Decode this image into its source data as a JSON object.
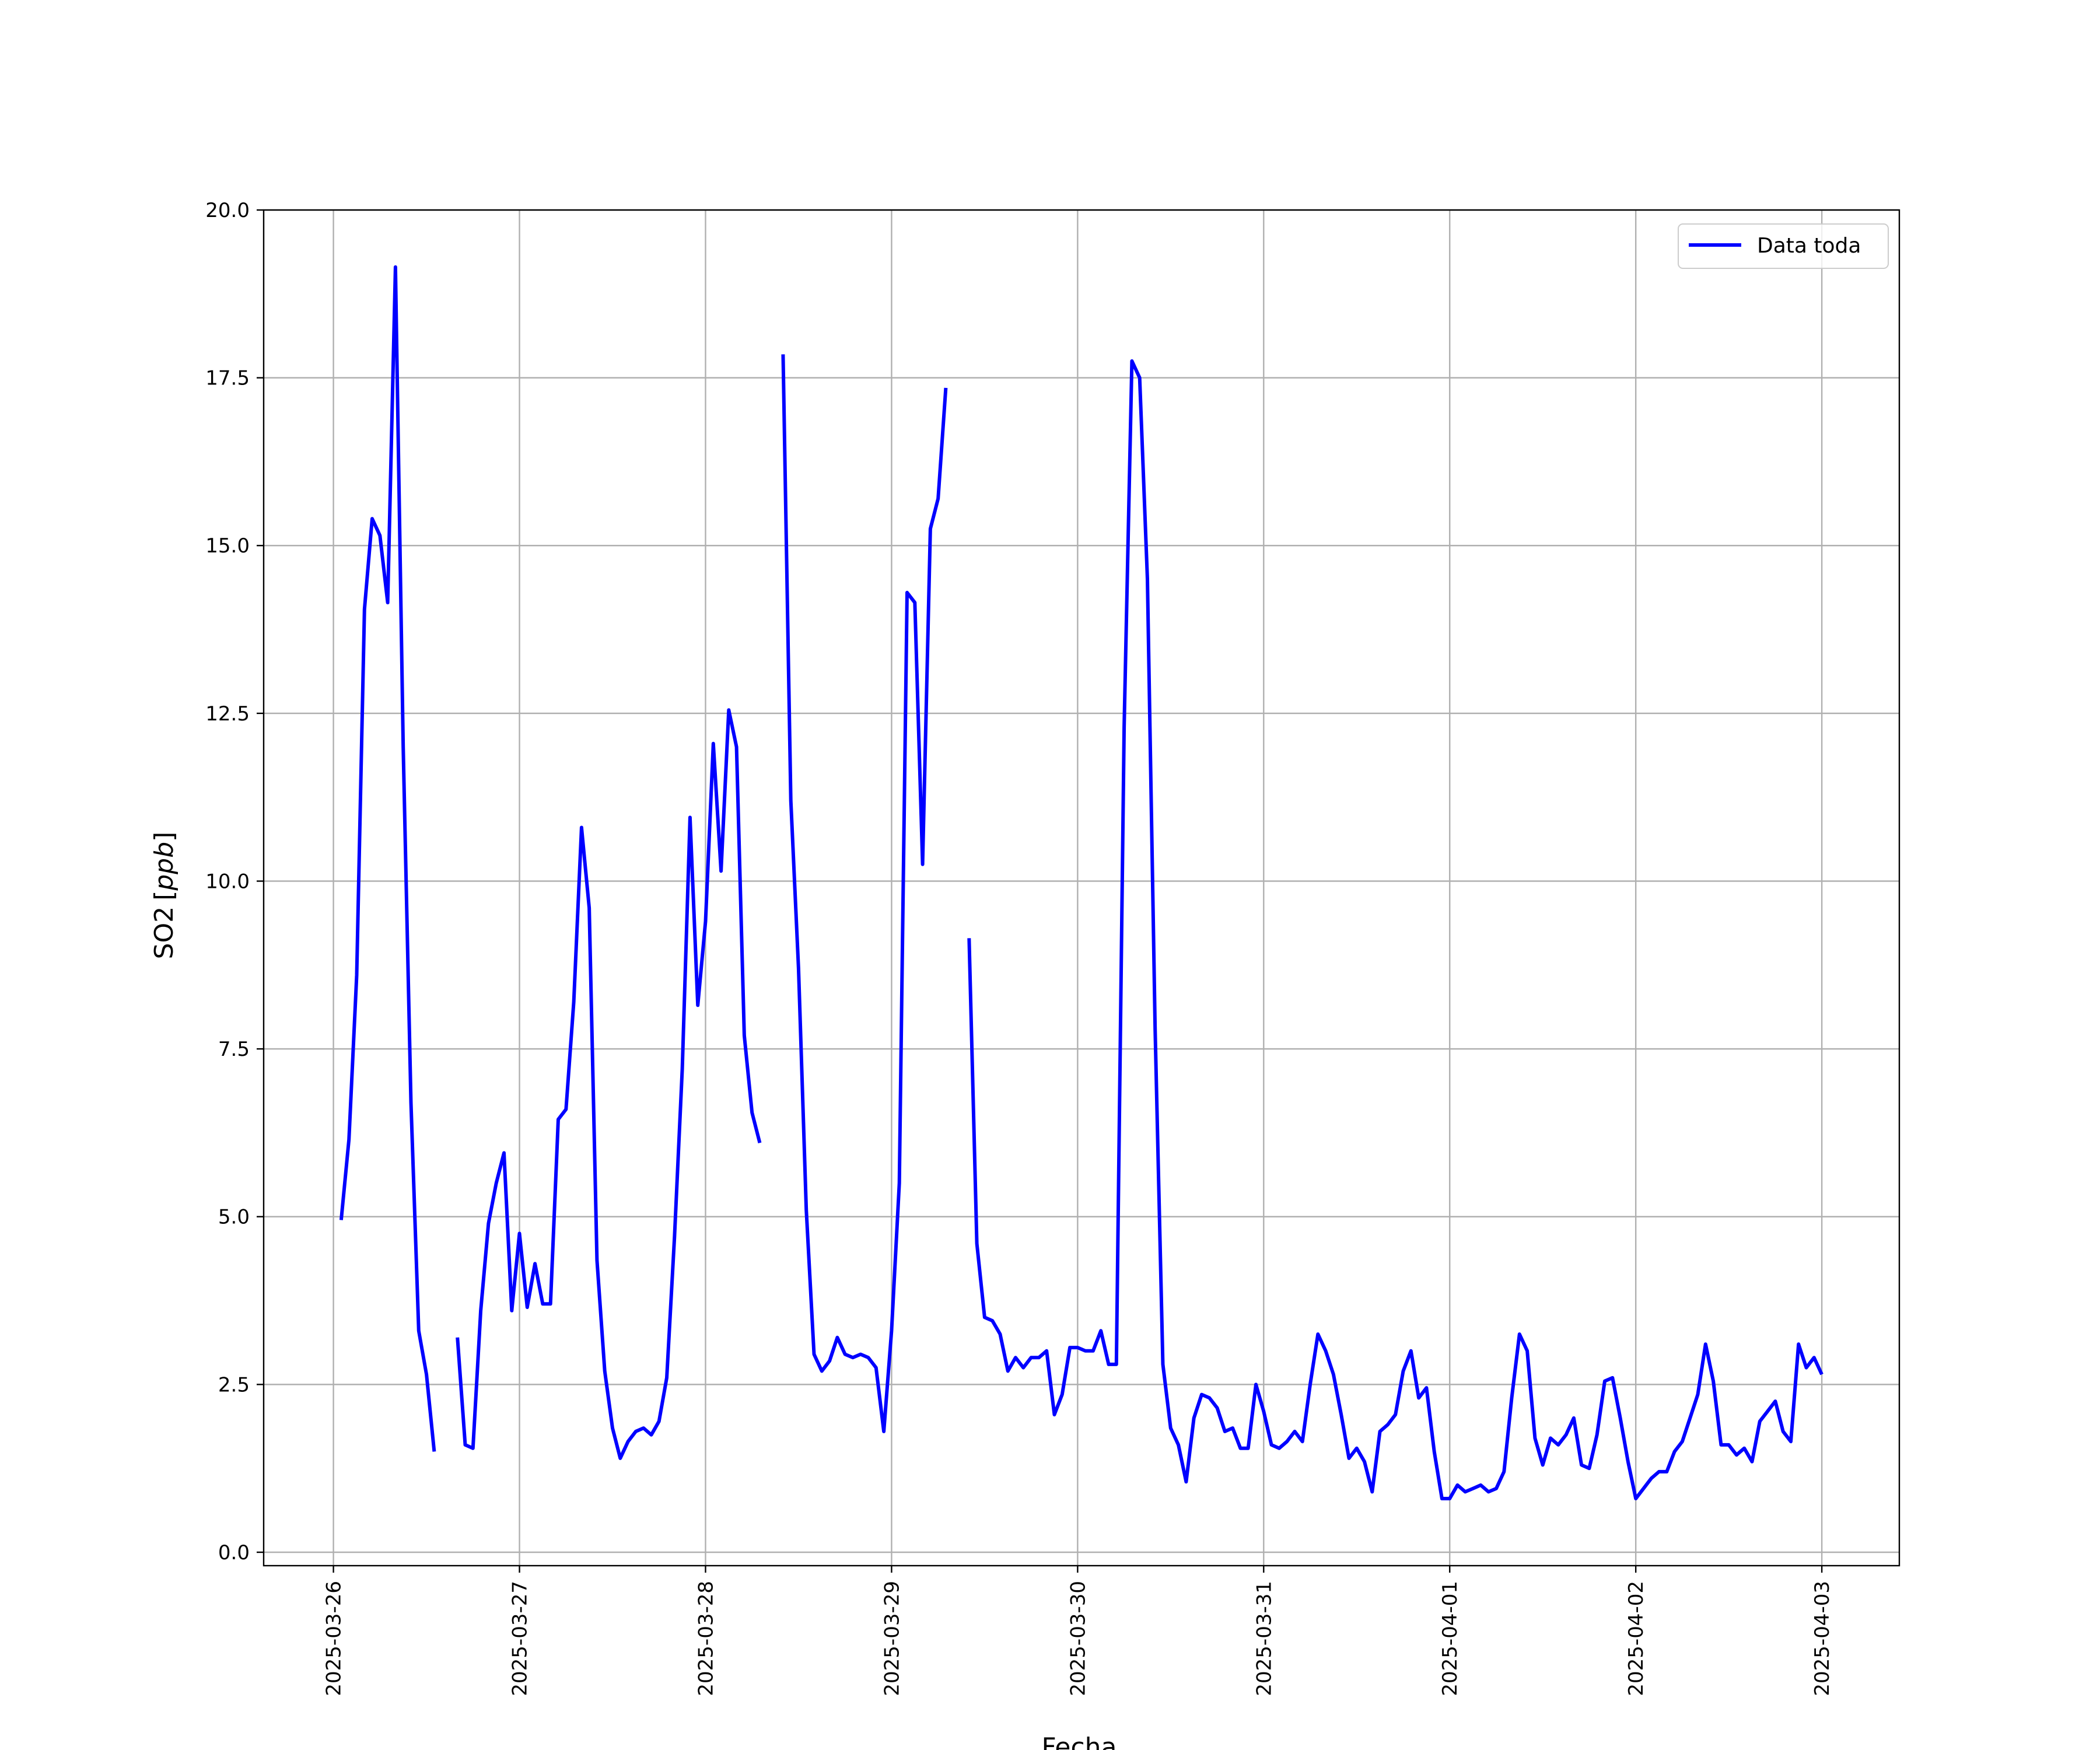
{
  "chart_data": {
    "type": "line",
    "title": "",
    "xlabel": "Fecha",
    "ylabel": "SO2",
    "ylabel_unit": "ppb",
    "xlim": [
      "2025-03-25T15:00",
      "2025-04-03T10:00"
    ],
    "ylim": [
      -0.2,
      20.0
    ],
    "x_ticks": [
      "2025-03-26",
      "2025-03-27",
      "2025-03-28",
      "2025-03-29",
      "2025-03-30",
      "2025-03-31",
      "2025-04-01",
      "2025-04-02",
      "2025-04-03"
    ],
    "y_ticks": [
      "0.0",
      "2.5",
      "5.0",
      "7.5",
      "10.0",
      "12.5",
      "15.0",
      "17.5",
      "20.0"
    ],
    "grid": true,
    "legend_position": "top-right",
    "series": [
      {
        "name": "Data toda",
        "color": "#0000ff",
        "points": [
          [
            "2025-03-26T01:00",
            4.95
          ],
          [
            "2025-03-26T02:00",
            6.15
          ],
          [
            "2025-03-26T03:00",
            8.6
          ],
          [
            "2025-03-26T04:00",
            14.05
          ],
          [
            "2025-03-26T05:00",
            15.4
          ],
          [
            "2025-03-26T06:00",
            15.15
          ],
          [
            "2025-03-26T07:00",
            14.15
          ],
          [
            "2025-03-26T08:00",
            19.15
          ],
          [
            "2025-03-26T09:00",
            12.0
          ],
          [
            "2025-03-26T10:00",
            6.7
          ],
          [
            "2025-03-26T11:00",
            3.3
          ],
          [
            "2025-03-26T12:00",
            2.65
          ],
          [
            "2025-03-26T13:00",
            1.5
          ],
          [
            "2025-03-26T14:00",
            null
          ],
          [
            "2025-03-26T15:00",
            null
          ],
          [
            "2025-03-26T16:00",
            3.2
          ],
          [
            "2025-03-26T17:00",
            1.6
          ],
          [
            "2025-03-26T18:00",
            1.55
          ],
          [
            "2025-03-26T19:00",
            3.6
          ],
          [
            "2025-03-26T20:00",
            4.9
          ],
          [
            "2025-03-26T21:00",
            5.5
          ],
          [
            "2025-03-26T22:00",
            5.95
          ],
          [
            "2025-03-26T23:00",
            3.6
          ],
          [
            "2025-03-27T00:00",
            4.75
          ],
          [
            "2025-03-27T01:00",
            3.65
          ],
          [
            "2025-03-27T02:00",
            4.3
          ],
          [
            "2025-03-27T03:00",
            3.7
          ],
          [
            "2025-03-27T04:00",
            3.7
          ],
          [
            "2025-03-27T05:00",
            6.45
          ],
          [
            "2025-03-27T06:00",
            6.6
          ],
          [
            "2025-03-27T07:00",
            8.2
          ],
          [
            "2025-03-27T08:00",
            10.8
          ],
          [
            "2025-03-27T09:00",
            9.6
          ],
          [
            "2025-03-27T10:00",
            4.35
          ],
          [
            "2025-03-27T11:00",
            2.7
          ],
          [
            "2025-03-27T12:00",
            1.85
          ],
          [
            "2025-03-27T13:00",
            1.4
          ],
          [
            "2025-03-27T14:00",
            1.65
          ],
          [
            "2025-03-27T15:00",
            1.8
          ],
          [
            "2025-03-27T16:00",
            1.85
          ],
          [
            "2025-03-27T17:00",
            1.75
          ],
          [
            "2025-03-27T18:00",
            1.95
          ],
          [
            "2025-03-27T19:00",
            2.6
          ],
          [
            "2025-03-27T20:00",
            4.7
          ],
          [
            "2025-03-27T21:00",
            7.2
          ],
          [
            "2025-03-27T22:00",
            10.95
          ],
          [
            "2025-03-27T23:00",
            8.15
          ],
          [
            "2025-03-28T00:00",
            9.4
          ],
          [
            "2025-03-28T01:00",
            12.05
          ],
          [
            "2025-03-28T02:00",
            10.15
          ],
          [
            "2025-03-28T03:00",
            12.55
          ],
          [
            "2025-03-28T04:00",
            12.0
          ],
          [
            "2025-03-28T05:00",
            7.7
          ],
          [
            "2025-03-28T06:00",
            6.55
          ],
          [
            "2025-03-28T07:00",
            6.1
          ],
          [
            "2025-03-28T08:00",
            null
          ],
          [
            "2025-03-28T09:00",
            null
          ],
          [
            "2025-03-28T10:00",
            17.85
          ],
          [
            "2025-03-28T11:00",
            11.2
          ],
          [
            "2025-03-28T12:00",
            8.7
          ],
          [
            "2025-03-28T13:00",
            5.1
          ],
          [
            "2025-03-28T14:00",
            2.95
          ],
          [
            "2025-03-28T15:00",
            2.7
          ],
          [
            "2025-03-28T16:00",
            2.85
          ],
          [
            "2025-03-28T17:00",
            3.2
          ],
          [
            "2025-03-28T18:00",
            2.95
          ],
          [
            "2025-03-28T19:00",
            2.9
          ],
          [
            "2025-03-28T20:00",
            2.95
          ],
          [
            "2025-03-28T21:00",
            2.9
          ],
          [
            "2025-03-28T22:00",
            2.75
          ],
          [
            "2025-03-28T23:00",
            1.8
          ],
          [
            "2025-03-29T00:00",
            3.3
          ],
          [
            "2025-03-29T01:00",
            5.5
          ],
          [
            "2025-03-29T02:00",
            14.3
          ],
          [
            "2025-03-29T03:00",
            14.15
          ],
          [
            "2025-03-29T04:00",
            10.25
          ],
          [
            "2025-03-29T05:00",
            15.25
          ],
          [
            "2025-03-29T06:00",
            15.7
          ],
          [
            "2025-03-29T07:00",
            17.35
          ],
          [
            "2025-03-29T08:00",
            null
          ],
          [
            "2025-03-29T09:00",
            null
          ],
          [
            "2025-03-29T10:00",
            9.15
          ],
          [
            "2025-03-29T11:00",
            4.6
          ],
          [
            "2025-03-29T12:00",
            3.5
          ],
          [
            "2025-03-29T13:00",
            3.45
          ],
          [
            "2025-03-29T14:00",
            3.25
          ],
          [
            "2025-03-29T15:00",
            2.7
          ],
          [
            "2025-03-29T16:00",
            2.9
          ],
          [
            "2025-03-29T17:00",
            2.75
          ],
          [
            "2025-03-29T18:00",
            2.9
          ],
          [
            "2025-03-29T19:00",
            2.9
          ],
          [
            "2025-03-29T20:00",
            3.0
          ],
          [
            "2025-03-29T21:00",
            2.05
          ],
          [
            "2025-03-29T22:00",
            2.35
          ],
          [
            "2025-03-29T23:00",
            3.05
          ],
          [
            "2025-03-30T00:00",
            3.05
          ],
          [
            "2025-03-30T01:00",
            3.0
          ],
          [
            "2025-03-30T02:00",
            3.0
          ],
          [
            "2025-03-30T03:00",
            3.3
          ],
          [
            "2025-03-30T04:00",
            2.8
          ],
          [
            "2025-03-30T05:00",
            2.8
          ],
          [
            "2025-03-30T06:00",
            12.3
          ],
          [
            "2025-03-30T07:00",
            17.75
          ],
          [
            "2025-03-30T08:00",
            17.5
          ],
          [
            "2025-03-30T09:00",
            14.5
          ],
          [
            "2025-03-30T10:00",
            7.8
          ],
          [
            "2025-03-30T11:00",
            2.8
          ],
          [
            "2025-03-30T12:00",
            1.85
          ],
          [
            "2025-03-30T13:00",
            1.6
          ],
          [
            "2025-03-30T14:00",
            1.05
          ],
          [
            "2025-03-30T15:00",
            2.0
          ],
          [
            "2025-03-30T16:00",
            2.35
          ],
          [
            "2025-03-30T17:00",
            2.3
          ],
          [
            "2025-03-30T18:00",
            2.15
          ],
          [
            "2025-03-30T19:00",
            1.8
          ],
          [
            "2025-03-30T20:00",
            1.85
          ],
          [
            "2025-03-30T21:00",
            1.55
          ],
          [
            "2025-03-30T22:00",
            1.55
          ],
          [
            "2025-03-30T23:00",
            2.5
          ],
          [
            "2025-03-31T00:00",
            2.1
          ],
          [
            "2025-03-31T01:00",
            1.6
          ],
          [
            "2025-03-31T02:00",
            1.55
          ],
          [
            "2025-03-31T03:00",
            1.65
          ],
          [
            "2025-03-31T04:00",
            1.8
          ],
          [
            "2025-03-31T05:00",
            1.65
          ],
          [
            "2025-03-31T06:00",
            2.5
          ],
          [
            "2025-03-31T07:00",
            3.25
          ],
          [
            "2025-03-31T08:00",
            3.0
          ],
          [
            "2025-03-31T09:00",
            2.65
          ],
          [
            "2025-03-31T10:00",
            2.05
          ],
          [
            "2025-03-31T11:00",
            1.4
          ],
          [
            "2025-03-31T12:00",
            1.55
          ],
          [
            "2025-03-31T13:00",
            1.35
          ],
          [
            "2025-03-31T14:00",
            0.9
          ],
          [
            "2025-03-31T15:00",
            1.8
          ],
          [
            "2025-03-31T16:00",
            1.9
          ],
          [
            "2025-03-31T17:00",
            2.05
          ],
          [
            "2025-03-31T18:00",
            2.7
          ],
          [
            "2025-03-31T19:00",
            3.0
          ],
          [
            "2025-03-31T20:00",
            2.3
          ],
          [
            "2025-03-31T21:00",
            2.45
          ],
          [
            "2025-03-31T22:00",
            1.5
          ],
          [
            "2025-03-31T23:00",
            0.8
          ],
          [
            "2025-04-01T00:00",
            0.8
          ],
          [
            "2025-04-01T01:00",
            1.0
          ],
          [
            "2025-04-01T02:00",
            0.9
          ],
          [
            "2025-04-01T03:00",
            0.95
          ],
          [
            "2025-04-01T04:00",
            1.0
          ],
          [
            "2025-04-01T05:00",
            0.9
          ],
          [
            "2025-04-01T06:00",
            0.95
          ],
          [
            "2025-04-01T07:00",
            1.2
          ],
          [
            "2025-04-01T08:00",
            2.3
          ],
          [
            "2025-04-01T09:00",
            3.25
          ],
          [
            "2025-04-01T10:00",
            3.0
          ],
          [
            "2025-04-01T11:00",
            1.7
          ],
          [
            "2025-04-01T12:00",
            1.3
          ],
          [
            "2025-04-01T13:00",
            1.7
          ],
          [
            "2025-04-01T14:00",
            1.6
          ],
          [
            "2025-04-01T15:00",
            1.75
          ],
          [
            "2025-04-01T16:00",
            2.0
          ],
          [
            "2025-04-01T17:00",
            1.3
          ],
          [
            "2025-04-01T18:00",
            1.25
          ],
          [
            "2025-04-01T19:00",
            1.75
          ],
          [
            "2025-04-01T20:00",
            2.55
          ],
          [
            "2025-04-01T21:00",
            2.6
          ],
          [
            "2025-04-01T22:00",
            2.0
          ],
          [
            "2025-04-01T23:00",
            1.35
          ],
          [
            "2025-04-02T00:00",
            0.8
          ],
          [
            "2025-04-02T01:00",
            0.95
          ],
          [
            "2025-04-02T02:00",
            1.1
          ],
          [
            "2025-04-02T03:00",
            1.2
          ],
          [
            "2025-04-02T04:00",
            1.2
          ],
          [
            "2025-04-02T05:00",
            1.5
          ],
          [
            "2025-04-02T06:00",
            1.65
          ],
          [
            "2025-04-02T07:00",
            2.0
          ],
          [
            "2025-04-02T08:00",
            2.35
          ],
          [
            "2025-04-02T09:00",
            3.1
          ],
          [
            "2025-04-02T10:00",
            2.55
          ],
          [
            "2025-04-02T11:00",
            1.6
          ],
          [
            "2025-04-02T12:00",
            1.6
          ],
          [
            "2025-04-02T13:00",
            1.45
          ],
          [
            "2025-04-02T14:00",
            1.55
          ],
          [
            "2025-04-02T15:00",
            1.35
          ],
          [
            "2025-04-02T16:00",
            1.95
          ],
          [
            "2025-04-02T17:00",
            2.1
          ],
          [
            "2025-04-02T18:00",
            2.25
          ],
          [
            "2025-04-02T19:00",
            1.8
          ],
          [
            "2025-04-02T20:00",
            1.65
          ],
          [
            "2025-04-02T21:00",
            3.1
          ],
          [
            "2025-04-02T22:00",
            2.75
          ],
          [
            "2025-04-02T23:00",
            2.9
          ],
          [
            "2025-04-03T00:00",
            2.65
          ]
        ]
      }
    ]
  }
}
